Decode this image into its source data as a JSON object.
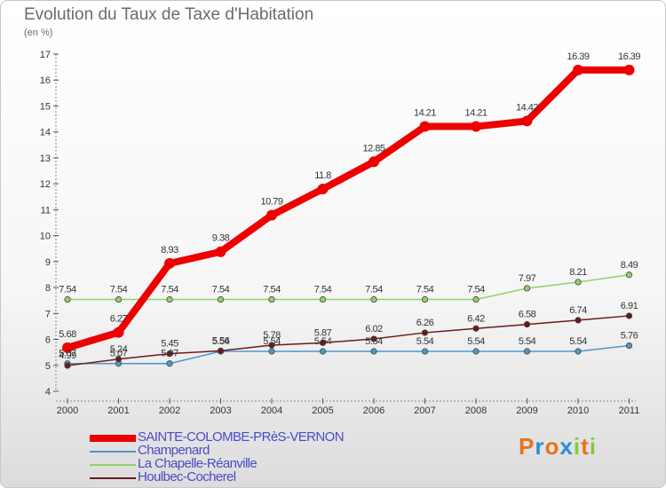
{
  "title": "Evolution du Taux de Taxe d'Habitation",
  "subtitle": "(en %)",
  "logo": {
    "letters": [
      "P",
      "r",
      "o",
      "x",
      "i",
      "t",
      "i"
    ],
    "colors": [
      "#e8731a",
      "#2a8fd0",
      "#e8731a",
      "#2a8fd0",
      "#8cc63f",
      "#e8731a",
      "#8cc63f"
    ]
  },
  "chart_data": {
    "type": "line",
    "x": [
      "2000",
      "2001",
      "2002",
      "2003",
      "2004",
      "2005",
      "2006",
      "2007",
      "2008",
      "2009",
      "2010",
      "2011"
    ],
    "ylim": [
      4,
      17
    ],
    "yticks": [
      "4",
      "5",
      "6",
      "7",
      "8",
      "9",
      "10",
      "11",
      "12",
      "13",
      "14",
      "15",
      "16",
      "17"
    ],
    "grid": false,
    "legend_position": "bottom-left",
    "series": [
      {
        "name": "SAINTE-COLOMBE-PRèS-VERNON",
        "color": "#ee0000",
        "values": [
          5.68,
          6.27,
          8.93,
          9.38,
          10.79,
          11.8,
          12.85,
          14.21,
          14.21,
          14.42,
          16.39,
          16.39
        ],
        "labels": [
          "5.68",
          "6.27",
          "8.93",
          "9.38",
          "10.79",
          "11.8",
          "12.85",
          "14.21",
          "14.21",
          "14.42",
          "16.39",
          "16.39"
        ]
      },
      {
        "name": "Champenard",
        "color": "#4f96c8",
        "values": [
          5.07,
          5.07,
          5.07,
          5.54,
          5.54,
          5.54,
          5.54,
          5.54,
          5.54,
          5.54,
          5.54,
          5.76
        ],
        "labels": [
          "5.07",
          "5.07",
          "5.07",
          "5.54",
          "5.54",
          "5.54",
          "5.54",
          "5.54",
          "5.54",
          "5.54",
          "5.54",
          "5.76"
        ]
      },
      {
        "name": "La Chapelle-Réanville",
        "color": "#8fd16a",
        "values": [
          7.54,
          7.54,
          7.54,
          7.54,
          7.54,
          7.54,
          7.54,
          7.54,
          7.54,
          7.97,
          8.21,
          8.49
        ],
        "labels": [
          "7.54",
          "7.54",
          "7.54",
          "7.54",
          "7.54",
          "7.54",
          "7.54",
          "7.54",
          "7.54",
          "7.97",
          "8.21",
          "8.49"
        ]
      },
      {
        "name": "Houlbec-Cocherel",
        "color": "#6b1a1a",
        "values": [
          4.99,
          5.24,
          5.45,
          5.56,
          5.78,
          5.87,
          6.02,
          6.26,
          6.42,
          6.58,
          6.74,
          6.91
        ],
        "labels": [
          "4.99",
          "5.24",
          "5.45",
          "5.56",
          "5.78",
          "5.87",
          "6.02",
          "6.26",
          "6.42",
          "6.58",
          "6.74",
          "6.91"
        ]
      }
    ]
  }
}
